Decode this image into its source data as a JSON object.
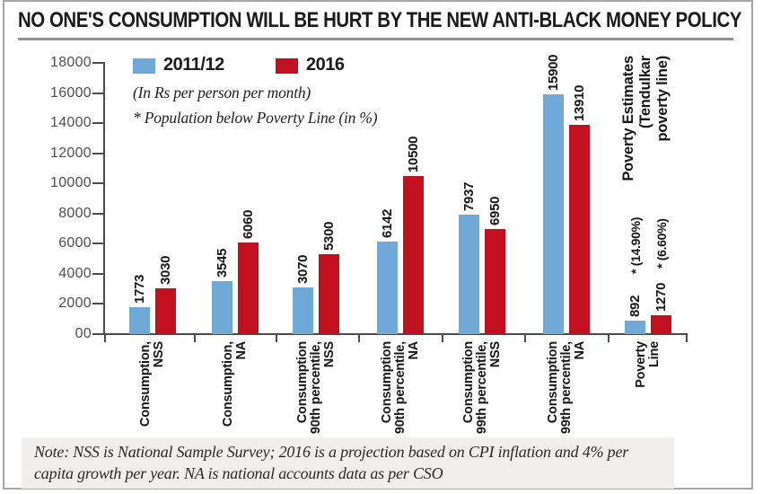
{
  "title": "NO ONE'S CONSUMPTION WILL BE HURT BY THE NEW ANTI-BLACK MONEY POLICY",
  "note": "Note: NSS is National Sample Survey; 2016 is a projection based on CPI inflation and 4% per capita growth per year. NA is national accounts data as per CSO",
  "chart_data": {
    "type": "bar",
    "title": "NO ONE'S CONSUMPTION WILL BE HURT BY THE NEW ANTI-BLACK MONEY POLICY",
    "unit_label": "(In Rs per person per month)",
    "footnote": "* Population below Poverty Line (in %)",
    "legend_position": "top-left",
    "grid": false,
    "y_axis": {
      "min": 0,
      "max": 18000,
      "tick_labels": [
        "18000",
        "16000",
        "14000",
        "12000",
        "10000",
        "8000",
        "6000",
        "4000",
        "2000",
        "00"
      ]
    },
    "categories": [
      [
        "Consumption,",
        "NSS"
      ],
      [
        "Consumption,",
        "NA"
      ],
      [
        "Consumption",
        "90th percentile,",
        "NSS"
      ],
      [
        "Consumption",
        "90th percentile,",
        "NA"
      ],
      [
        "Consumption",
        "99th percentile,",
        "NSS"
      ],
      [
        "Consumption",
        "99th percentile,",
        "NA"
      ],
      [
        "Poverty",
        "Line"
      ]
    ],
    "series": [
      {
        "name": "2011/12",
        "color": "#6FA9D8",
        "values": [
          1773,
          3545,
          3070,
          6142,
          7937,
          15900,
          892
        ]
      },
      {
        "name": "2016",
        "color": "#C2101E",
        "values": [
          3030,
          6060,
          5300,
          10500,
          6950,
          13910,
          1270
        ]
      }
    ],
    "poverty_percent_labels": [
      {
        "series": "2011/12",
        "label": "* (14.90%)"
      },
      {
        "series": "2016",
        "label": "* (6.60%)"
      }
    ],
    "right_annotation": [
      "Poverty Estimates",
      "(Tendulkar",
      "poverty line)"
    ]
  }
}
